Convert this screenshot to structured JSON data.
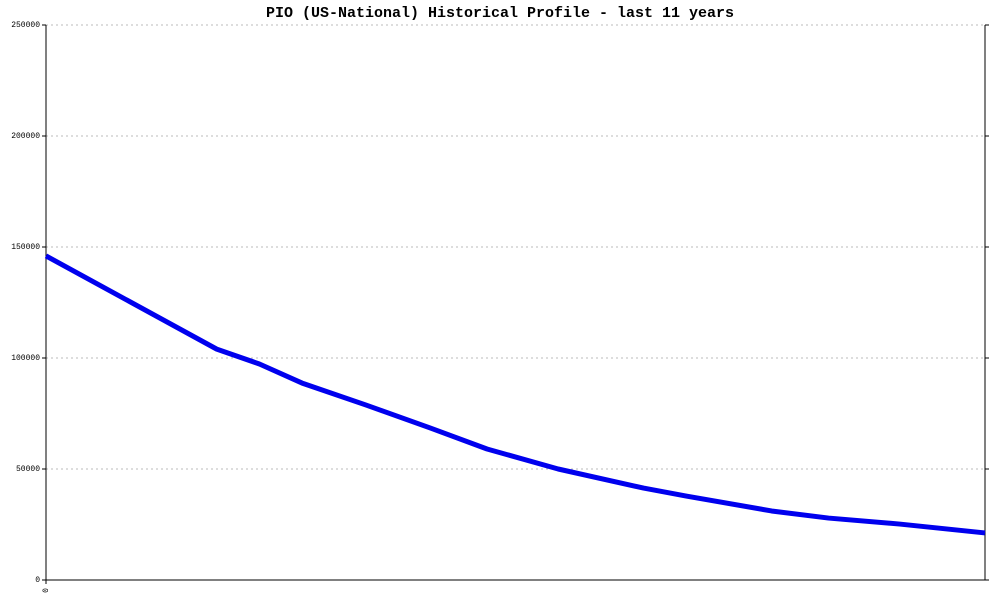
{
  "chart_data": {
    "type": "line",
    "title": "PIO (US-National) Historical Profile - last 11 years",
    "x": [
      0,
      24,
      30,
      36,
      45,
      54,
      62,
      72,
      84,
      90,
      102,
      110,
      120,
      132
    ],
    "series": [
      {
        "color": "#0000ee",
        "values": [
          146000,
          104000,
          97300,
          88700,
          78800,
          68500,
          59000,
          50000,
          41400,
          37800,
          31100,
          27900,
          25200,
          21200
        ]
      }
    ],
    "xlim": [
      0,
      132
    ],
    "xticks": [
      0
    ],
    "ylim": [
      0,
      250000
    ],
    "yticks": [
      0,
      50000,
      100000,
      150000,
      200000,
      250000
    ],
    "grid": true
  }
}
